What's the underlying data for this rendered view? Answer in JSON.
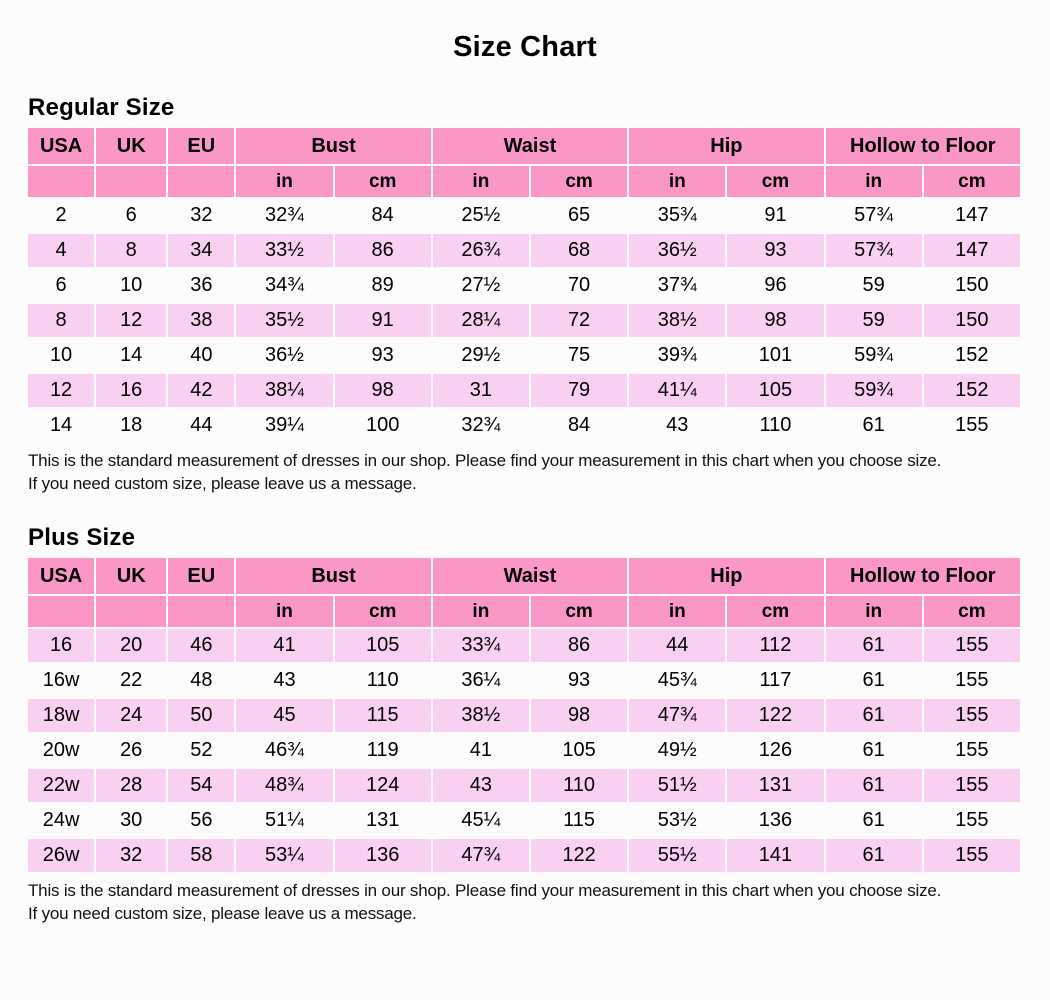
{
  "title": "Size Chart",
  "colors": {
    "header_pink": "#fa97c7",
    "row_pink": "#f9d0f1",
    "text": "#000000",
    "page_background": "#fdfcfc"
  },
  "columns": {
    "size_headers": [
      "USA",
      "UK",
      "EU"
    ],
    "measure_headers": [
      "Bust",
      "Waist",
      "Hip",
      "Hollow to Floor"
    ],
    "unit_in": "in",
    "unit_cm": "cm"
  },
  "regular": {
    "heading": "Regular Size",
    "rows": [
      [
        "2",
        "6",
        "32",
        "32¾",
        "84",
        "25½",
        "65",
        "35¾",
        "91",
        "57¾",
        "147"
      ],
      [
        "4",
        "8",
        "34",
        "33½",
        "86",
        "26¾",
        "68",
        "36½",
        "93",
        "57¾",
        "147"
      ],
      [
        "6",
        "10",
        "36",
        "34¾",
        "89",
        "27½",
        "70",
        "37¾",
        "96",
        "59",
        "150"
      ],
      [
        "8",
        "12",
        "38",
        "35½",
        "91",
        "28¼",
        "72",
        "38½",
        "98",
        "59",
        "150"
      ],
      [
        "10",
        "14",
        "40",
        "36½",
        "93",
        "29½",
        "75",
        "39¾",
        "101",
        "59¾",
        "152"
      ],
      [
        "12",
        "16",
        "42",
        "38¼",
        "98",
        "31",
        "79",
        "41¼",
        "105",
        "59¾",
        "152"
      ],
      [
        "14",
        "18",
        "44",
        "39¼",
        "100",
        "32¾",
        "84",
        "43",
        "110",
        "61",
        "155"
      ]
    ],
    "note_line1": "This is the standard measurement of dresses in our shop. Please find your measurement in this chart when you choose size.",
    "note_line2": "If you need custom size, please leave us a message."
  },
  "plus": {
    "heading": "Plus Size",
    "rows": [
      [
        "16",
        "20",
        "46",
        "41",
        "105",
        "33¾",
        "86",
        "44",
        "112",
        "61",
        "155"
      ],
      [
        "16w",
        "22",
        "48",
        "43",
        "110",
        "36¼",
        "93",
        "45¾",
        "117",
        "61",
        "155"
      ],
      [
        "18w",
        "24",
        "50",
        "45",
        "115",
        "38½",
        "98",
        "47¾",
        "122",
        "61",
        "155"
      ],
      [
        "20w",
        "26",
        "52",
        "46¾",
        "119",
        "41",
        "105",
        "49½",
        "126",
        "61",
        "155"
      ],
      [
        "22w",
        "28",
        "54",
        "48¾",
        "124",
        "43",
        "110",
        "51½",
        "131",
        "61",
        "155"
      ],
      [
        "24w",
        "30",
        "56",
        "51¼",
        "131",
        "45¼",
        "115",
        "53½",
        "136",
        "61",
        "155"
      ],
      [
        "26w",
        "32",
        "58",
        "53¼",
        "136",
        "47¾",
        "122",
        "55½",
        "141",
        "61",
        "155"
      ]
    ],
    "note_line1": "This is the standard measurement of dresses in our shop. Please find your measurement in this chart when you choose size.",
    "note_line2": "If you need custom size, please leave us a message."
  }
}
